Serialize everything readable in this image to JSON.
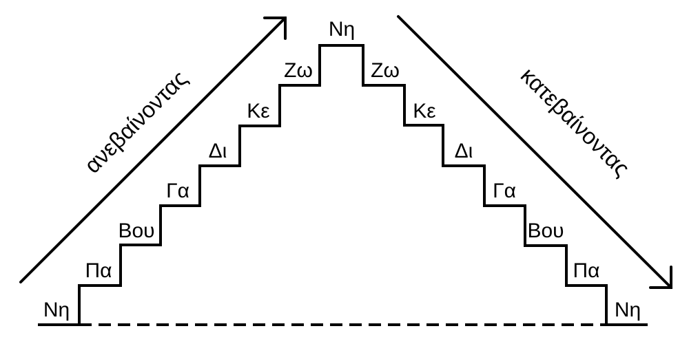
{
  "diagram": {
    "ascending_label": "ανεβαίνοντας",
    "descending_label": "κατεβαίνοντας",
    "ascending_notes": [
      "Νη",
      "Πα",
      "Βου",
      "Γα",
      "Δι",
      "Κε",
      "Ζω"
    ],
    "top_note": "Νη",
    "descending_notes": [
      "Ζω",
      "Κε",
      "Δι",
      "Γα",
      "Βου",
      "Πα",
      "Νη"
    ]
  }
}
